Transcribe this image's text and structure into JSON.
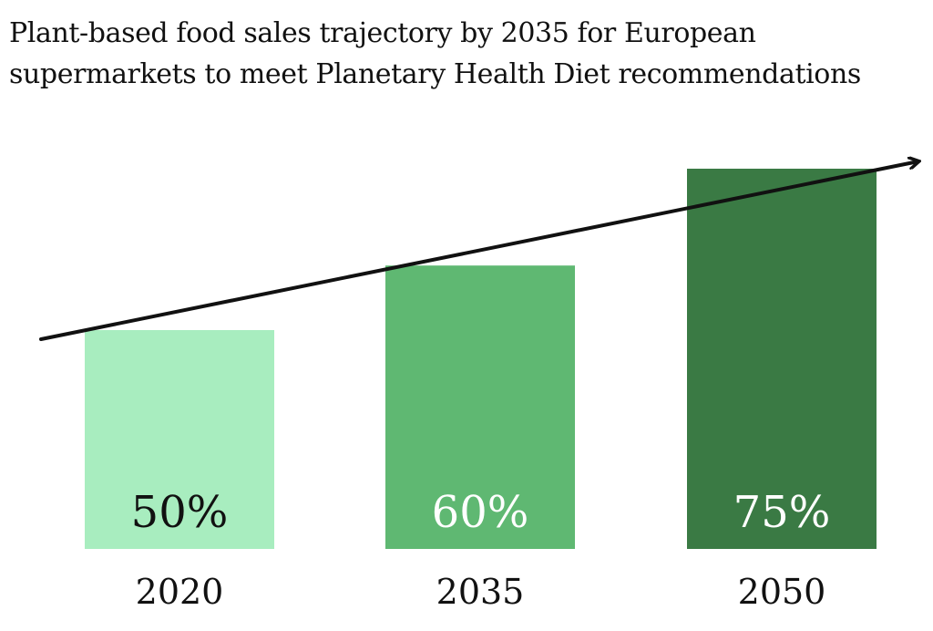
{
  "chart_data": {
    "type": "bar",
    "title": "Plant-based food sales trajectory by 2035 for European supermarkets to meet Planetary Health Diet recommendations",
    "xlabel": "",
    "ylabel": "",
    "categories": [
      "2020",
      "2035",
      "2050"
    ],
    "values": [
      50,
      60,
      75
    ],
    "value_labels": [
      "50%",
      "60%",
      "75%"
    ],
    "ylim": [
      0,
      80
    ],
    "grid": false,
    "colors": [
      "#a8edbf",
      "#5fb872",
      "#3a7a44"
    ],
    "label_colors": [
      "#111111",
      "#ffffff",
      "#ffffff"
    ],
    "trend_arrow": true
  }
}
